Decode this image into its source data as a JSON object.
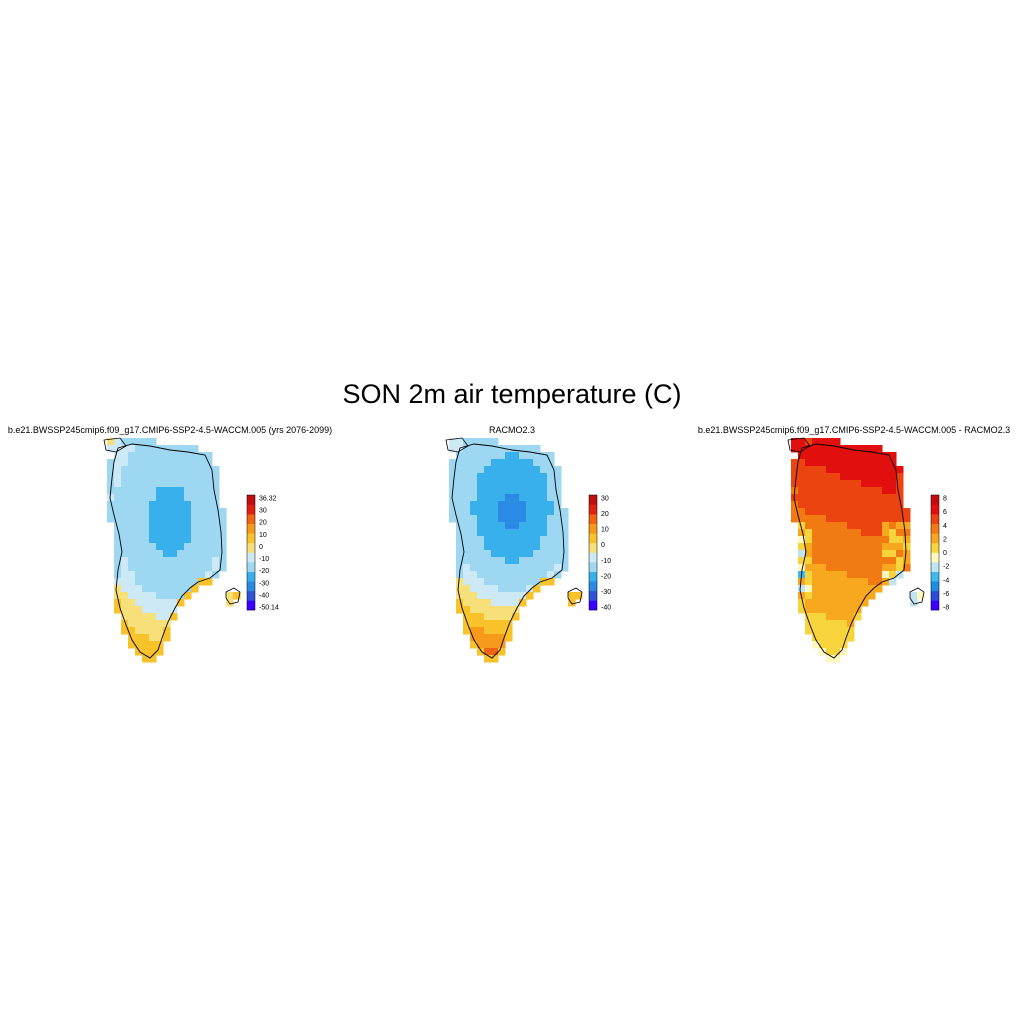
{
  "title": "SON 2m air temperature (C)",
  "colors": {
    "ice": "#cfe9f7",
    "coast_line": "#000000",
    "land_warm": "#f7cf3a",
    "temp_scale": [
      "#3a00ff",
      "#3153d6",
      "#2a8ae6",
      "#38b0ec",
      "#9dd7f2",
      "#cde9f5",
      "#f7e07a",
      "#f7c22a",
      "#f79a1c",
      "#f06412",
      "#e22010",
      "#c00d0d"
    ],
    "diff_scale": [
      "#3a00ff",
      "#2a4cd8",
      "#1d8ae3",
      "#3dbaee",
      "#bfe5f5",
      "#fdf7c0",
      "#f7d43c",
      "#f7a81e",
      "#f27a12",
      "#ec4410",
      "#e20f0f",
      "#c50c0c"
    ]
  },
  "panels": [
    {
      "title": "b.e21.BWSSP245cmip6.f09_g17.CMIP6-SSP2-4.5-WACCM.005 (yrs 2076-2099)",
      "colorbar_labels": [
        "36.32",
        "30",
        "20",
        "10",
        "0",
        "-10",
        "-20",
        "-30",
        "-40",
        "-50.14"
      ],
      "field": "model"
    },
    {
      "title": "RACMO2.3",
      "colorbar_labels": [
        "30",
        "20",
        "10",
        "0",
        "-10",
        "-20",
        "-30",
        "-40"
      ],
      "field": "racmo"
    },
    {
      "title": "b.e21.BWSSP245cmip6.f09_g17.CMIP6-SSP2-4.5-WACCM.005 - RACMO2.3",
      "colorbar_labels": [
        "8",
        "6",
        "4",
        "2",
        "0",
        "-2",
        "-4",
        "-6",
        "-8"
      ],
      "field": "diff"
    }
  ]
}
